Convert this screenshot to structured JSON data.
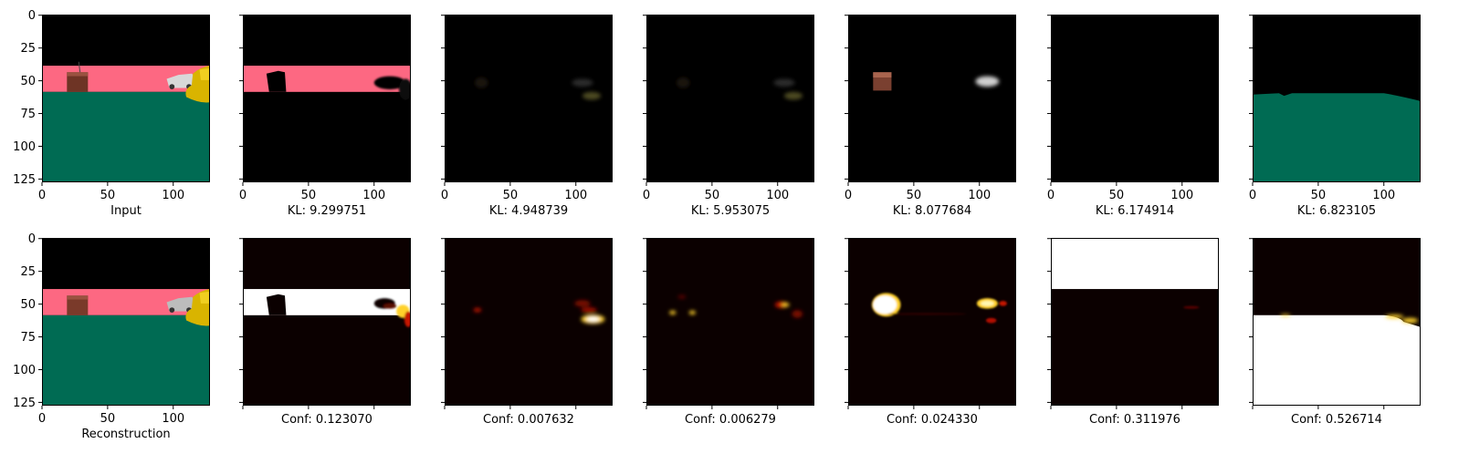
{
  "chart_data": {
    "type": "image-grid",
    "layout": {
      "rows": 2,
      "cols": 7
    },
    "image_extent": [
      0,
      128
    ],
    "x_ticks": [
      0,
      50,
      100
    ],
    "y_ticks": [
      0,
      25,
      50,
      75,
      100,
      125
    ],
    "colors": {
      "sky": "#000000",
      "wall": "#fd6882",
      "floor": "#006b53",
      "box": "#6e3425",
      "hot_dark": "#0b0000",
      "hot_white": "#ffffff",
      "hot_yellow": "#ffd12a",
      "hot_red": "#c41200"
    },
    "top_row": [
      {
        "panel": "input",
        "label": "Input"
      },
      {
        "panel": "slot-mask-wall",
        "label": "KL: 9.299751"
      },
      {
        "panel": "slot-faint-objects",
        "label": "KL: 4.948739"
      },
      {
        "panel": "slot-faint-objects",
        "label": "KL: 5.953075"
      },
      {
        "panel": "slot-box-car",
        "label": "KL: 8.077684"
      },
      {
        "panel": "slot-empty",
        "label": "KL: 6.174914"
      },
      {
        "panel": "slot-floor",
        "label": "KL: 6.823105"
      }
    ],
    "bottom_row": [
      {
        "panel": "reconstruction",
        "label": "Reconstruction"
      },
      {
        "panel": "conf-wall",
        "label": "Conf: 0.123070"
      },
      {
        "panel": "conf-objects",
        "label": "Conf: 0.007632"
      },
      {
        "panel": "conf-objects2",
        "label": "Conf: 0.006279"
      },
      {
        "panel": "conf-box-car",
        "label": "Conf: 0.024330"
      },
      {
        "panel": "conf-sky",
        "label": "Conf: 0.311976"
      },
      {
        "panel": "conf-floor",
        "label": "Conf: 0.526714"
      }
    ]
  }
}
